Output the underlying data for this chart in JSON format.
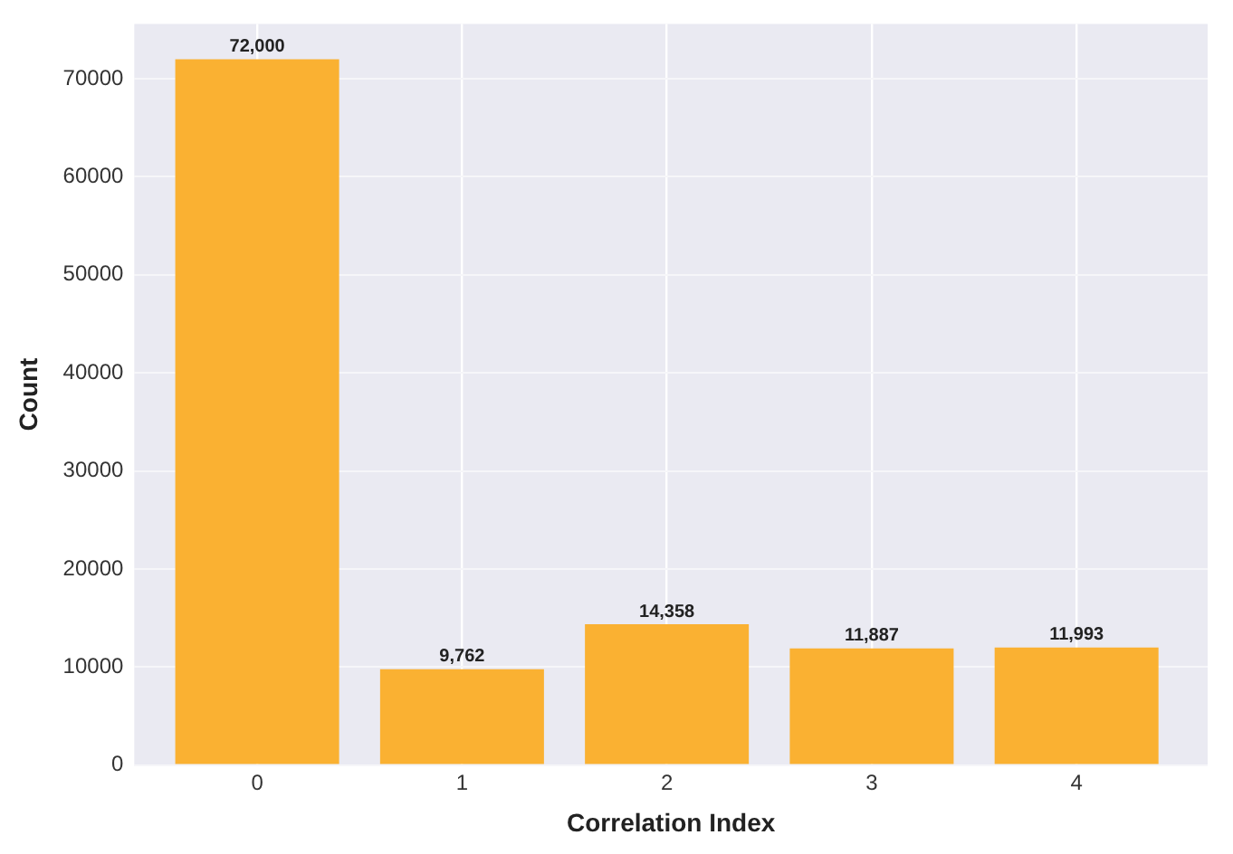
{
  "chart_data": {
    "type": "bar",
    "xlabel": "Correlation Index",
    "ylabel": "Count",
    "categories": [
      "0",
      "1",
      "2",
      "3",
      "4"
    ],
    "values": [
      72000,
      9762,
      14358,
      11887,
      11993
    ],
    "color": "#fab132",
    "value_labels": [
      "72,000",
      "9,762",
      "14,358",
      "11,887",
      "11,993"
    ],
    "ylim": [
      0,
      75600
    ],
    "yticks": [
      0,
      10000,
      20000,
      30000,
      40000,
      50000,
      60000,
      70000
    ],
    "grid": true
  }
}
